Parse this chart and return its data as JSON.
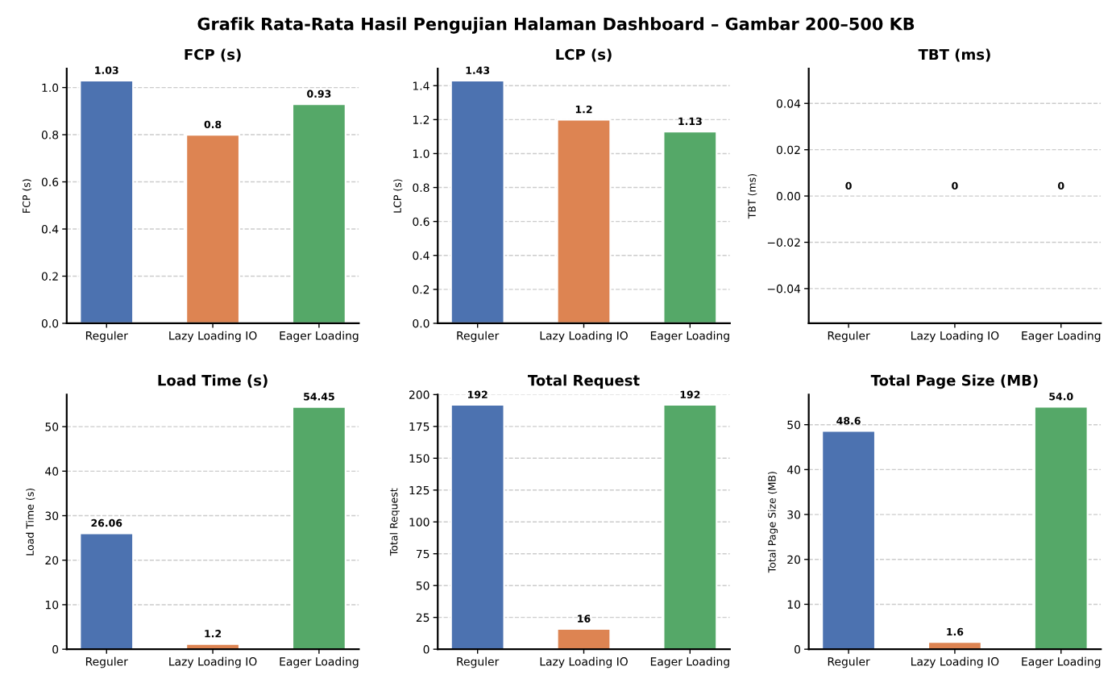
{
  "chart_data": [
    {
      "type": "bar",
      "title": "FCP (s)",
      "ylabel": "FCP (s)",
      "annotations": [
        "Grafik Rata-Rata Hasil Pengujian Halaman Dashboard – Gambar 200–500 KB"
      ],
      "categories": [
        "Reguler",
        "Lazy Loading IO",
        "Eager Loading"
      ],
      "values": [
        1.03,
        0.8,
        0.93
      ],
      "value_labels": [
        "1.03",
        "0.8",
        "0.93"
      ],
      "colors": [
        "#4c72b0",
        "#dd8452",
        "#55a868"
      ],
      "ylim": [
        0,
        1.08
      ],
      "yticks": [
        {
          "value": 0,
          "label": "0.0"
        },
        {
          "value": 0.2,
          "label": "0.2"
        },
        {
          "value": 0.4,
          "label": "0.4"
        },
        {
          "value": 0.6,
          "label": "0.6"
        },
        {
          "value": 0.8,
          "label": "0.8"
        },
        {
          "value": 1,
          "label": "1.0"
        }
      ],
      "grid": "y"
    },
    {
      "type": "bar",
      "title": "LCP (s)",
      "ylabel": "LCP (s)",
      "categories": [
        "Reguler",
        "Lazy Loading IO",
        "Eager Loading"
      ],
      "values": [
        1.43,
        1.2,
        1.13
      ],
      "value_labels": [
        "1.43",
        "1.2",
        "1.13"
      ],
      "colors": [
        "#4c72b0",
        "#dd8452",
        "#55a868"
      ],
      "ylim": [
        0,
        1.5
      ],
      "yticks": [
        {
          "value": 0,
          "label": "0.0"
        },
        {
          "value": 0.2,
          "label": "0.2"
        },
        {
          "value": 0.4,
          "label": "0.4"
        },
        {
          "value": 0.6,
          "label": "0.6"
        },
        {
          "value": 0.8,
          "label": "0.8"
        },
        {
          "value": 1,
          "label": "1.0"
        },
        {
          "value": 1.2,
          "label": "1.2"
        },
        {
          "value": 1.4,
          "label": "1.4"
        }
      ],
      "grid": "y"
    },
    {
      "type": "bar",
      "title": "TBT (ms)",
      "ylabel": "TBT (ms)",
      "categories": [
        "Reguler",
        "Lazy Loading IO",
        "Eager Loading"
      ],
      "values": [
        0,
        0,
        0
      ],
      "value_labels": [
        "0",
        "0",
        "0"
      ],
      "ylim": [
        -0.055,
        0.055
      ],
      "yticks": [
        {
          "value": -0.04,
          "label": "−0.04"
        },
        {
          "value": -0.02,
          "label": "−0.02"
        },
        {
          "value": 0,
          "label": "0.00"
        },
        {
          "value": 0.02,
          "label": "0.02"
        },
        {
          "value": 0.04,
          "label": "0.04"
        }
      ],
      "grid": "y"
    },
    {
      "type": "bar",
      "title": "Load Time (s)",
      "ylabel": "Load Time (s)",
      "categories": [
        "Reguler",
        "Lazy Loading IO",
        "Eager Loading"
      ],
      "values": [
        26.06,
        1.2,
        54.45
      ],
      "value_labels": [
        "26.06",
        "1.2",
        "54.45"
      ],
      "colors": [
        "#4c72b0",
        "#dd8452",
        "#55a868"
      ],
      "ylim": [
        0,
        57.2
      ],
      "yticks": [
        0,
        10,
        20,
        30,
        40,
        50
      ],
      "grid": "y"
    },
    {
      "type": "bar",
      "title": "Total Request",
      "ylabel": "Total Request",
      "categories": [
        "Reguler",
        "Lazy Loading IO",
        "Eager Loading"
      ],
      "values": [
        192,
        16,
        192
      ],
      "value_labels": [
        "192",
        "16",
        "192"
      ],
      "colors": [
        "#4c72b0",
        "#dd8452",
        "#55a868"
      ],
      "ylim": [
        0,
        200
      ],
      "yticks": [
        0,
        25,
        50,
        75,
        100,
        125,
        150,
        175,
        200
      ],
      "grid": "y"
    },
    {
      "type": "bar",
      "title": "Total Page Size (MB)",
      "ylabel": "Total Page Size (MB)",
      "categories": [
        "Reguler",
        "Lazy Loading IO",
        "Eager Loading"
      ],
      "values": [
        48.6,
        1.6,
        54.0
      ],
      "value_labels": [
        "48.6",
        "1.6",
        "54.0"
      ],
      "colors": [
        "#4c72b0",
        "#dd8452",
        "#55a868"
      ],
      "ylim": [
        0,
        56.7
      ],
      "yticks": [
        0,
        10,
        20,
        30,
        40,
        50
      ],
      "grid": "y"
    }
  ]
}
